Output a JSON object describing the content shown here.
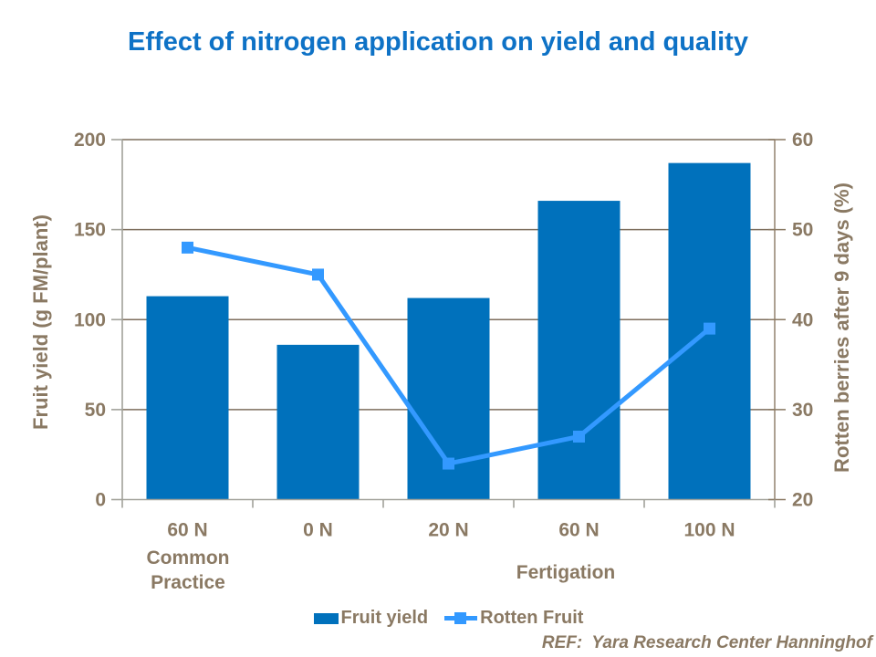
{
  "slide": {
    "title": "Effect of nitrogen application on yield and quality",
    "ref_note": "REF:  Yara Research Center Hanninghof"
  },
  "colors": {
    "title": "#0e72c6",
    "bar": "#0071bc",
    "line": "#3399ff",
    "axis_text": "#8a7963",
    "gridline": "#7d6e5d",
    "axis_line": "#a2a29a",
    "right_axis_line": "#8a7963",
    "background": "#ffffff"
  },
  "chart_data": {
    "type": "bar",
    "subtype": "bar-line-combo",
    "categories": [
      "60 N",
      "0 N",
      "20 N",
      "60 N",
      "100 N"
    ],
    "category_sublabel": {
      "index": 0,
      "lines": [
        "Common",
        "Practice"
      ]
    },
    "group_label": "Fertigation",
    "series": [
      {
        "name": "Fruit yield",
        "type": "bar",
        "axis": "left",
        "color": "#0071bc",
        "values": [
          113,
          86,
          112,
          166,
          187
        ]
      },
      {
        "name": "Rotten Fruit",
        "type": "line",
        "axis": "right",
        "color": "#3399ff",
        "marker": "square",
        "values": [
          48,
          45,
          24,
          27,
          39
        ]
      }
    ],
    "left_axis": {
      "title": "Fruit yield (g FM/plant)",
      "min": 0,
      "max": 200,
      "ticks": [
        0,
        50,
        100,
        150,
        200
      ]
    },
    "right_axis": {
      "title": "Rotten berries after 9 days (%)",
      "min": 20,
      "max": 60,
      "ticks": [
        20,
        30,
        40,
        50,
        60
      ]
    },
    "grid": "horizontal gridlines at left-axis ticks",
    "legend_position": "bottom"
  }
}
